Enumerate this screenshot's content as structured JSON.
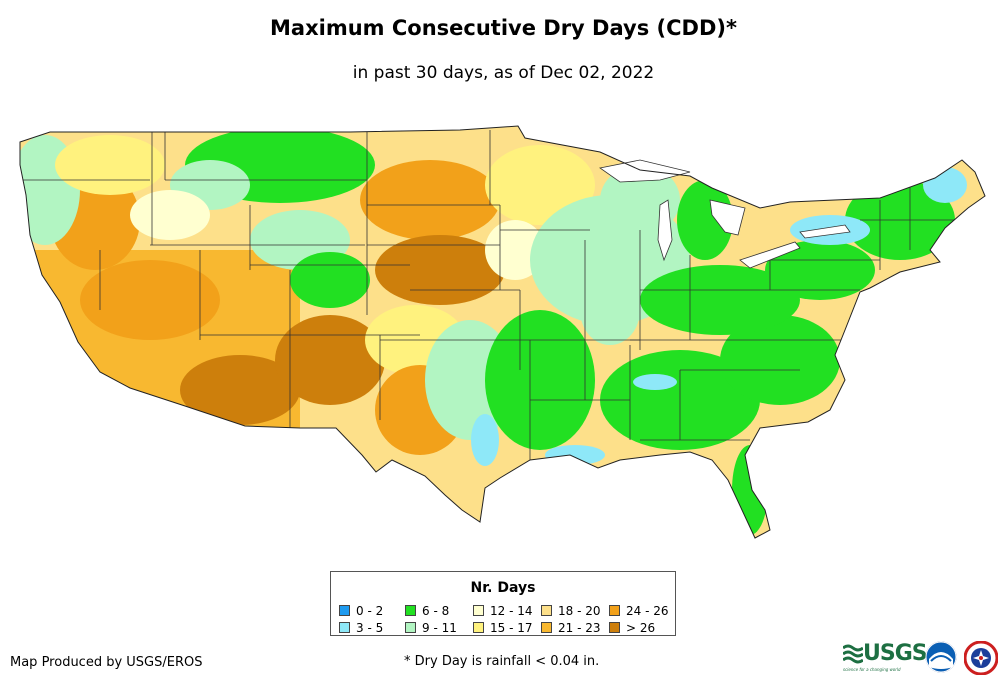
{
  "title": "Maximum Consecutive Dry Days (CDD)*",
  "subtitle": "in past 30 days, as of Dec 02, 2022",
  "legend": {
    "title": "Nr. Days",
    "items": [
      {
        "label": "0 - 2",
        "color": "#1e9bf0"
      },
      {
        "label": "3 - 5",
        "color": "#8ee8f8"
      },
      {
        "label": "6 - 8",
        "color": "#22e022"
      },
      {
        "label": "9 - 11",
        "color": "#b2f5c2"
      },
      {
        "label": "12 - 14",
        "color": "#ffffd0"
      },
      {
        "label": "15 - 17",
        "color": "#fff27e"
      },
      {
        "label": "18 - 20",
        "color": "#fde08a"
      },
      {
        "label": "21 - 23",
        "color": "#f8b830"
      },
      {
        "label": "24 - 26",
        "color": "#f2a11a"
      },
      {
        "label": "> 26",
        "color": "#cd7f0c"
      }
    ]
  },
  "footer": {
    "credit": "Map Produced by USGS/EROS",
    "note": "* Dry Day is rainfall < 0.04 in.",
    "usgs_logo": "USGS",
    "usgs_tagline": "science for a changing world"
  },
  "logos": [
    "usgs-logo",
    "noaa-logo",
    "nws-logo"
  ]
}
